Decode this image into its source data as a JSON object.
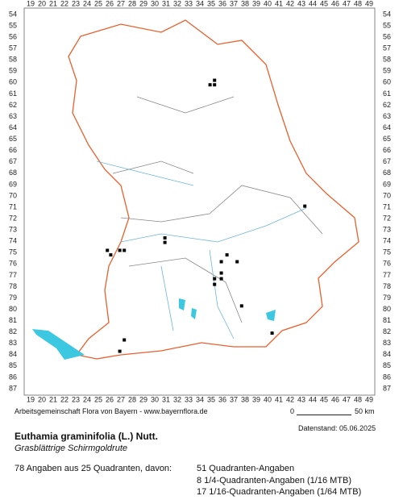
{
  "map": {
    "columns": [
      19,
      20,
      21,
      22,
      23,
      24,
      25,
      26,
      27,
      28,
      29,
      30,
      31,
      32,
      33,
      34,
      35,
      36,
      37,
      38,
      39,
      40,
      41,
      42,
      43,
      44,
      45,
      46,
      47,
      48,
      49
    ],
    "rows": [
      54,
      55,
      56,
      57,
      58,
      59,
      60,
      61,
      62,
      63,
      64,
      65,
      66,
      67,
      68,
      69,
      70,
      71,
      72,
      73,
      74,
      75,
      76,
      77,
      78,
      79,
      80,
      81,
      82,
      83,
      84,
      85,
      86,
      87
    ],
    "markers": [
      {
        "x": 35.3,
        "y": 59.8
      },
      {
        "x": 34.9,
        "y": 60.2
      },
      {
        "x": 35.3,
        "y": 60.2
      },
      {
        "x": 25.8,
        "y": 74.8
      },
      {
        "x": 26.1,
        "y": 75.2
      },
      {
        "x": 26.9,
        "y": 74.8
      },
      {
        "x": 27.3,
        "y": 74.8
      },
      {
        "x": 30.9,
        "y": 73.7
      },
      {
        "x": 30.9,
        "y": 74.1
      },
      {
        "x": 43.3,
        "y": 70.9
      },
      {
        "x": 36.4,
        "y": 75.2
      },
      {
        "x": 35.9,
        "y": 75.8
      },
      {
        "x": 37.3,
        "y": 75.8
      },
      {
        "x": 35.9,
        "y": 76.8
      },
      {
        "x": 35.3,
        "y": 77.3
      },
      {
        "x": 35.9,
        "y": 77.3
      },
      {
        "x": 35.3,
        "y": 77.8
      },
      {
        "x": 37.7,
        "y": 79.7
      },
      {
        "x": 27.3,
        "y": 82.7
      },
      {
        "x": 26.9,
        "y": 83.7
      },
      {
        "x": 40.4,
        "y": 82.1
      }
    ]
  },
  "footer": {
    "credit": "Arbeitsgemeinschaft Flora von Bayern - www.bayernflora.de",
    "scale_start": "0",
    "scale_end": "50 km",
    "date": "Datenstand: 05.06.2025",
    "title": "Euthamia graminifolia (L.) Nutt.",
    "subtitle": "Grasblättrige Schirmgoldrute",
    "summary": "78 Angaben aus 25 Quadranten, davon:",
    "counts": [
      "51 Quadranten-Angaben",
      "8 1/4-Quadranten-Angaben (1/16 MTB)",
      "17 1/16-Quadranten-Angaben (1/64 MTB)"
    ]
  }
}
